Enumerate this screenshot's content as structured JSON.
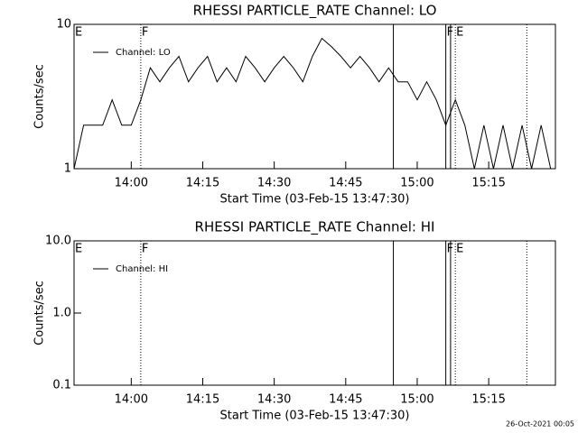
{
  "chart_data": [
    {
      "type": "line",
      "title": "RHESSI PARTICLE_RATE Channel: LO",
      "x_label": "Start Time (03-Feb-15 13:47:30)",
      "y_label": "Counts/sec",
      "x": [
        "13:48",
        "13:50",
        "13:52",
        "13:54",
        "13:56",
        "13:58",
        "14:00",
        "14:02",
        "14:04",
        "14:06",
        "14:08",
        "14:10",
        "14:12",
        "14:14",
        "14:16",
        "14:18",
        "14:20",
        "14:22",
        "14:24",
        "14:26",
        "14:28",
        "14:30",
        "14:32",
        "14:34",
        "14:36",
        "14:38",
        "14:40",
        "14:42",
        "14:44",
        "14:46",
        "14:48",
        "14:50",
        "14:52",
        "14:54",
        "14:56",
        "14:58",
        "15:00",
        "15:02",
        "15:04",
        "15:06",
        "15:08",
        "15:10",
        "15:12",
        "15:14",
        "15:16",
        "15:18",
        "15:20",
        "15:22",
        "15:24",
        "15:26",
        "15:28"
      ],
      "series": [
        {
          "name": "Channel: LO",
          "color": "#000000",
          "values": [
            1,
            2,
            2,
            2,
            3,
            2,
            2,
            3,
            5,
            4,
            5,
            6,
            4,
            5,
            6,
            4,
            5,
            4,
            6,
            5,
            4,
            5,
            6,
            5,
            4,
            6,
            8,
            7,
            6,
            5,
            6,
            5,
            4,
            5,
            4,
            4,
            3,
            4,
            3,
            2,
            3,
            2,
            1,
            2,
            1,
            2,
            1,
            2,
            1,
            2,
            1
          ]
        }
      ],
      "xlim": [
        "13:48",
        "15:29"
      ],
      "xticks": [
        "14:00",
        "14:15",
        "14:30",
        "14:45",
        "15:00",
        "15:15"
      ],
      "ylim": [
        1,
        10
      ],
      "yticks": [
        1,
        10
      ],
      "log_y": true,
      "vlines": [
        {
          "x": "14:02",
          "style": "dotted"
        },
        {
          "x": "14:55",
          "style": "solid"
        },
        {
          "x": "15:06",
          "style": "solid"
        },
        {
          "x": "15:07",
          "style": "solid"
        },
        {
          "x": "15:08",
          "style": "dotted"
        },
        {
          "x": "15:23",
          "style": "dotted"
        }
      ],
      "annotations": [
        {
          "x": "13:48",
          "text": "E"
        },
        {
          "x": "14:02",
          "text": "F"
        },
        {
          "x": "15:06",
          "text": "F"
        },
        {
          "x": "15:08",
          "text": "E"
        }
      ]
    },
    {
      "type": "line",
      "title": "RHESSI PARTICLE_RATE Channel: HI",
      "x_label": "Start Time (03-Feb-15 13:47:30)",
      "y_label": "Counts/sec",
      "x": [],
      "series": [
        {
          "name": "Channel: HI",
          "color": "#000000",
          "values": []
        }
      ],
      "xlim": [
        "13:48",
        "15:29"
      ],
      "xticks": [
        "14:00",
        "14:15",
        "14:30",
        "14:45",
        "15:00",
        "15:15"
      ],
      "ylim": [
        0.1,
        10
      ],
      "yticks": [
        0.1,
        {
          "value": 1,
          "label": "1.0"
        },
        {
          "value": 10,
          "label": "10.0"
        }
      ],
      "log_y": true,
      "vlines": [
        {
          "x": "14:02",
          "style": "dotted"
        },
        {
          "x": "14:55",
          "style": "solid"
        },
        {
          "x": "15:06",
          "style": "solid"
        },
        {
          "x": "15:07",
          "style": "solid"
        },
        {
          "x": "15:08",
          "style": "dotted"
        },
        {
          "x": "15:23",
          "style": "dotted"
        }
      ],
      "annotations": [
        {
          "x": "13:48",
          "text": "E"
        },
        {
          "x": "14:02",
          "text": "F"
        },
        {
          "x": "15:06",
          "text": "F"
        },
        {
          "x": "15:08",
          "text": "E"
        }
      ]
    }
  ],
  "footer": "26-Oct-2021 00:05"
}
